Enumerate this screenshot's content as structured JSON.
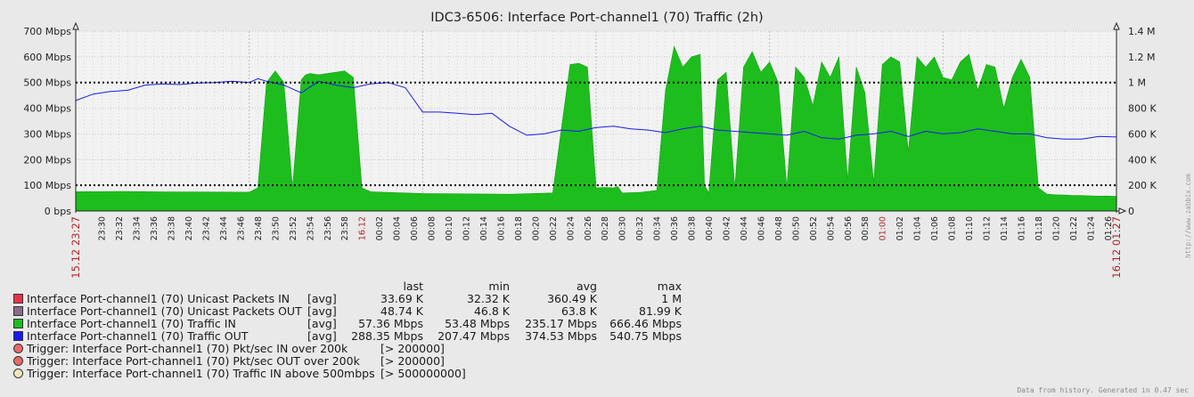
{
  "chart_data": {
    "type": "area",
    "title": "IDC3-6506: Interface Port-channel1 (70) Traffic  (2h)",
    "y_left_ticks": [
      "0 bps",
      "100 Mbps",
      "200 Mbps",
      "300 Mbps",
      "400 Mbps",
      "500 Mbps",
      "600 Mbps",
      "700 Mbps"
    ],
    "y_right_ticks": [
      "0",
      "200 K",
      "400 K",
      "600 K",
      "800 K",
      "1 M",
      "1.2 M",
      "1.4 M"
    ],
    "ylim_left": [
      0,
      700
    ],
    "ylim_right": [
      0,
      1400000
    ],
    "x_start_label": "15.12 23:27",
    "x_end_label": "16.12 01:27",
    "x_tick_labels": [
      "23:30",
      "23:32",
      "23:34",
      "23:36",
      "23:38",
      "23:40",
      "23:42",
      "23:44",
      "23:46",
      "23:48",
      "23:50",
      "23:52",
      "23:54",
      "23:56",
      "23:58",
      "16.12",
      "00:02",
      "00:04",
      "00:06",
      "00:08",
      "00:10",
      "00:12",
      "00:14",
      "00:16",
      "00:18",
      "00:20",
      "00:22",
      "00:24",
      "00:26",
      "00:28",
      "00:30",
      "00:32",
      "00:34",
      "00:36",
      "00:38",
      "00:40",
      "00:42",
      "00:44",
      "00:46",
      "00:48",
      "00:50",
      "00:52",
      "00:54",
      "00:56",
      "00:58",
      "01:00",
      "01:02",
      "01:04",
      "01:06",
      "01:08",
      "01:10",
      "01:12",
      "01:14",
      "01:16",
      "01:18",
      "01:20",
      "01:22",
      "01:24",
      "01:26"
    ],
    "x_red_labels": [
      "16.12",
      "01:00"
    ],
    "series": [
      {
        "name": "Interface Port-channel1 (70) Traffic IN",
        "unit": "Mbps",
        "color": "#1ebd1e",
        "x_minutes": [
          0,
          5,
          10,
          20,
          21,
          22,
          23,
          24,
          25,
          26,
          26.5,
          27,
          28,
          29,
          30,
          31,
          32,
          33,
          34,
          36,
          38,
          40,
          50,
          55,
          57,
          58,
          59,
          60,
          61,
          62,
          62.5,
          63,
          65,
          67,
          68,
          69,
          70,
          71,
          72,
          72.5,
          73,
          74,
          75,
          76,
          77,
          78,
          79,
          80,
          81,
          82,
          83,
          84,
          85,
          86,
          87,
          88,
          89,
          90,
          91,
          92,
          93,
          94,
          95,
          96,
          97,
          98,
          99,
          100,
          101,
          102,
          103,
          104,
          105,
          106,
          107,
          108,
          109,
          110,
          111,
          112,
          113,
          114,
          115,
          116,
          117,
          118,
          119,
          120
        ],
        "values": [
          75,
          76,
          74,
          73,
          90,
          500,
          545,
          500,
          90,
          510,
          530,
          535,
          530,
          535,
          540,
          545,
          520,
          90,
          75,
          72,
          70,
          68,
          65,
          70,
          570,
          575,
          560,
          90,
          92,
          90,
          95,
          70,
          72,
          80,
          470,
          640,
          560,
          600,
          610,
          100,
          70,
          510,
          540,
          90,
          560,
          620,
          540,
          580,
          500,
          90,
          560,
          520,
          410,
          580,
          520,
          600,
          120,
          560,
          460,
          110,
          570,
          600,
          580,
          230,
          600,
          560,
          600,
          520,
          510,
          580,
          610,
          470,
          570,
          560,
          400,
          520,
          590,
          520,
          90,
          65,
          63,
          62,
          60,
          60,
          59,
          58,
          58,
          57
        ]
      },
      {
        "name": "Interface Port-channel1 (70) Traffic OUT",
        "unit": "Mbps",
        "color": "#1a1aea",
        "x_minutes": [
          0,
          2,
          4,
          6,
          8,
          10,
          12,
          14,
          16,
          18,
          20,
          21,
          22,
          24,
          26,
          28,
          30,
          32,
          34,
          36,
          38,
          40,
          42,
          44,
          46,
          48,
          50,
          52,
          54,
          56,
          58,
          60,
          62,
          64,
          66,
          68,
          70,
          72,
          74,
          76,
          78,
          80,
          82,
          84,
          86,
          88,
          90,
          92,
          94,
          96,
          98,
          100,
          102,
          104,
          106,
          108,
          110,
          112,
          114,
          116,
          118,
          120
        ],
        "values": [
          430,
          455,
          465,
          470,
          490,
          495,
          492,
          498,
          500,
          505,
          500,
          515,
          505,
          490,
          460,
          505,
          490,
          480,
          495,
          500,
          480,
          385,
          385,
          380,
          375,
          380,
          330,
          295,
          300,
          315,
          310,
          325,
          330,
          320,
          315,
          305,
          320,
          330,
          315,
          310,
          305,
          300,
          295,
          310,
          285,
          280,
          295,
          300,
          310,
          290,
          310,
          300,
          305,
          320,
          310,
          300,
          300,
          285,
          280,
          280,
          290,
          288
        ]
      }
    ],
    "triggers": [
      {
        "label": "Trigger: Interface Port-channel1 (70) Pkt/sec IN over 200k",
        "condition": "[> 200000]",
        "color": "#e86a6a",
        "value": 100
      },
      {
        "label": "Trigger: Interface Port-channel1 (70) Pkt/sec OUT over 200k",
        "condition": "[> 200000]",
        "color": "#e86a6a",
        "value": 100
      },
      {
        "label": "Trigger: Interface Port-channel1 (70) Traffic IN above 500mbps",
        "condition": "[> 500000000]",
        "color": "#f0e6c0",
        "value": 500
      }
    ],
    "legend_headers": {
      "last": "last",
      "min": "min",
      "avg": "avg",
      "max": "max"
    },
    "legend_items": [
      {
        "name": "Interface Port-channel1 (70) Unicast Packets IN",
        "color": "#e8344a",
        "fn": "[avg]",
        "last": "33.69 K",
        "min": "32.32 K",
        "avg": "360.49 K",
        "max": "1 M"
      },
      {
        "name": "Interface Port-channel1 (70) Unicast Packets OUT",
        "color": "#8a6b8a",
        "fn": "[avg]",
        "last": "48.74 K",
        "min": "46.8 K",
        "avg": "63.8 K",
        "max": "81.99 K"
      },
      {
        "name": "Interface Port-channel1 (70) Traffic IN",
        "color": "#1ebd1e",
        "fn": "[avg]",
        "last": "57.36 Mbps",
        "min": "53.48 Mbps",
        "avg": "235.17 Mbps",
        "max": "666.46 Mbps"
      },
      {
        "name": "Interface Port-channel1 (70) Traffic OUT",
        "color": "#1a1aea",
        "fn": "[avg]",
        "last": "288.35 Mbps",
        "min": "207.47 Mbps",
        "avg": "374.53 Mbps",
        "max": "540.75 Mbps"
      }
    ],
    "footer": "Data from history. Generated in 0.47 sec",
    "side_label": "http://www.zabbix.com"
  }
}
